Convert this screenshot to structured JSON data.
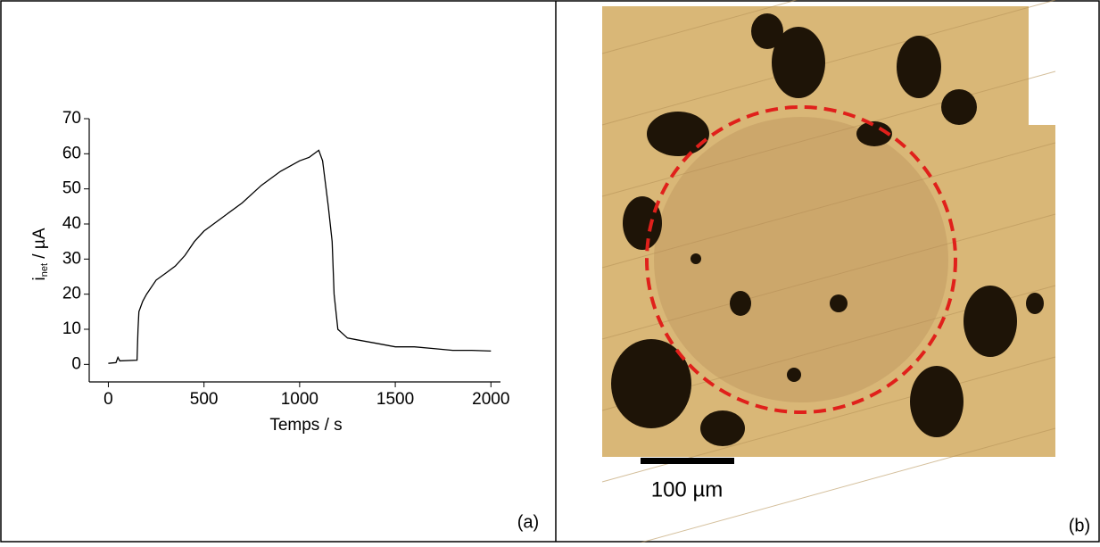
{
  "chart_data": {
    "type": "line",
    "y_label": [
      "i",
      "net",
      " / µA"
    ],
    "x_label": "Temps / s",
    "x": [
      0,
      40,
      50,
      60,
      150,
      155,
      160,
      180,
      200,
      250,
      300,
      350,
      400,
      450,
      500,
      550,
      600,
      700,
      800,
      900,
      1000,
      1050,
      1100,
      1120,
      1150,
      1170,
      1180,
      1200,
      1250,
      1300,
      1400,
      1500,
      1600,
      1700,
      1800,
      1900,
      2000
    ],
    "values": [
      0.3,
      0.5,
      2,
      1,
      1.2,
      10,
      15,
      18,
      20,
      24,
      26,
      28,
      31,
      35,
      38,
      40,
      42,
      46,
      51,
      55,
      58,
      59,
      61,
      58,
      45,
      35,
      20,
      10,
      7.5,
      7,
      6,
      5,
      5,
      4.5,
      4,
      4,
      3.8
    ],
    "color": "#000000",
    "xlim": [
      -100,
      2050
    ],
    "xticks": [
      0,
      500,
      1000,
      1500,
      2000
    ],
    "ylim": [
      -5,
      70
    ],
    "yticks": [
      0,
      10,
      20,
      30,
      40,
      50,
      60,
      70
    ]
  },
  "panel_labels": [
    "(a)",
    "(b)"
  ],
  "scale_bar_label": "100 µm"
}
